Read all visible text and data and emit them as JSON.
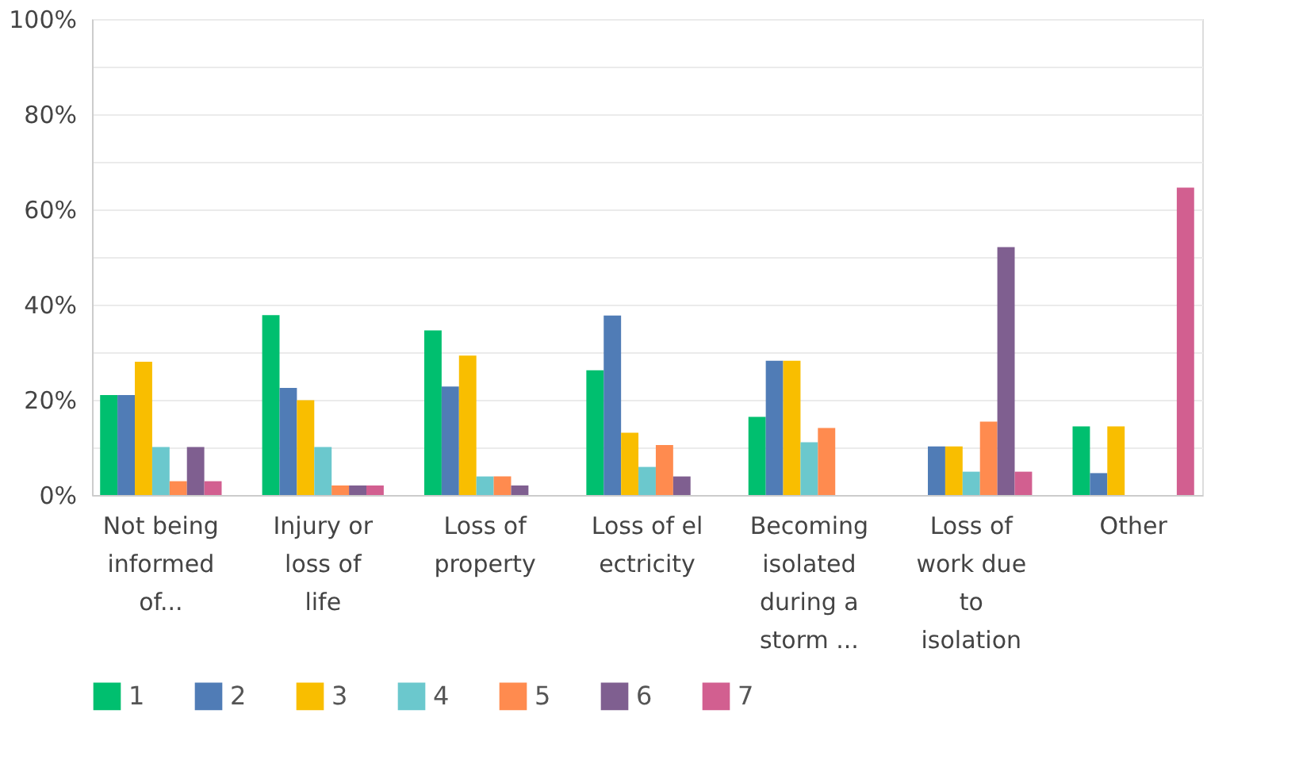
{
  "chart_data": {
    "type": "bar",
    "categories": [
      "Not being informed of...",
      "Injury or loss of life",
      "Loss of property",
      "Loss of electricity",
      "Becoming isolated during a storm ...",
      "Loss of work due to isolation",
      "Other"
    ],
    "series": [
      {
        "name": "1",
        "color": "#00bf6f",
        "values": [
          21,
          37.8,
          34.6,
          26.2,
          16.4,
          0,
          14.4
        ]
      },
      {
        "name": "2",
        "color": "#507cb6",
        "values": [
          21,
          22.5,
          22.8,
          37.7,
          28.2,
          10.2,
          4.6
        ]
      },
      {
        "name": "3",
        "color": "#f9be00",
        "values": [
          28,
          19.9,
          29.3,
          13.1,
          28.2,
          10.2,
          14.4
        ]
      },
      {
        "name": "4",
        "color": "#6bc8cd",
        "values": [
          10.1,
          10.1,
          3.9,
          5.9,
          11.1,
          4.9,
          0
        ]
      },
      {
        "name": "5",
        "color": "#ff8b4f",
        "values": [
          2.9,
          2,
          3.9,
          10.5,
          14.1,
          15.4,
          0
        ]
      },
      {
        "name": "6",
        "color": "#7f5f90",
        "values": [
          10.1,
          2,
          2,
          3.9,
          0,
          52.1,
          0
        ]
      },
      {
        "name": "7",
        "color": "#d25f90",
        "values": [
          2.9,
          2,
          0,
          0,
          0,
          4.9,
          64.6
        ]
      }
    ],
    "ylim": [
      0,
      100
    ],
    "yticks": [
      {
        "value": 0,
        "label": "0%"
      },
      {
        "value": 10,
        "label": null
      },
      {
        "value": 20,
        "label": "20%"
      },
      {
        "value": 30,
        "label": null
      },
      {
        "value": 40,
        "label": "40%"
      },
      {
        "value": 50,
        "label": null
      },
      {
        "value": 60,
        "label": "60%"
      },
      {
        "value": 70,
        "label": null
      },
      {
        "value": 80,
        "label": "80%"
      },
      {
        "value": 90,
        "label": null
      },
      {
        "value": 100,
        "label": "100%"
      }
    ],
    "grid": true,
    "legend": "bottom"
  }
}
